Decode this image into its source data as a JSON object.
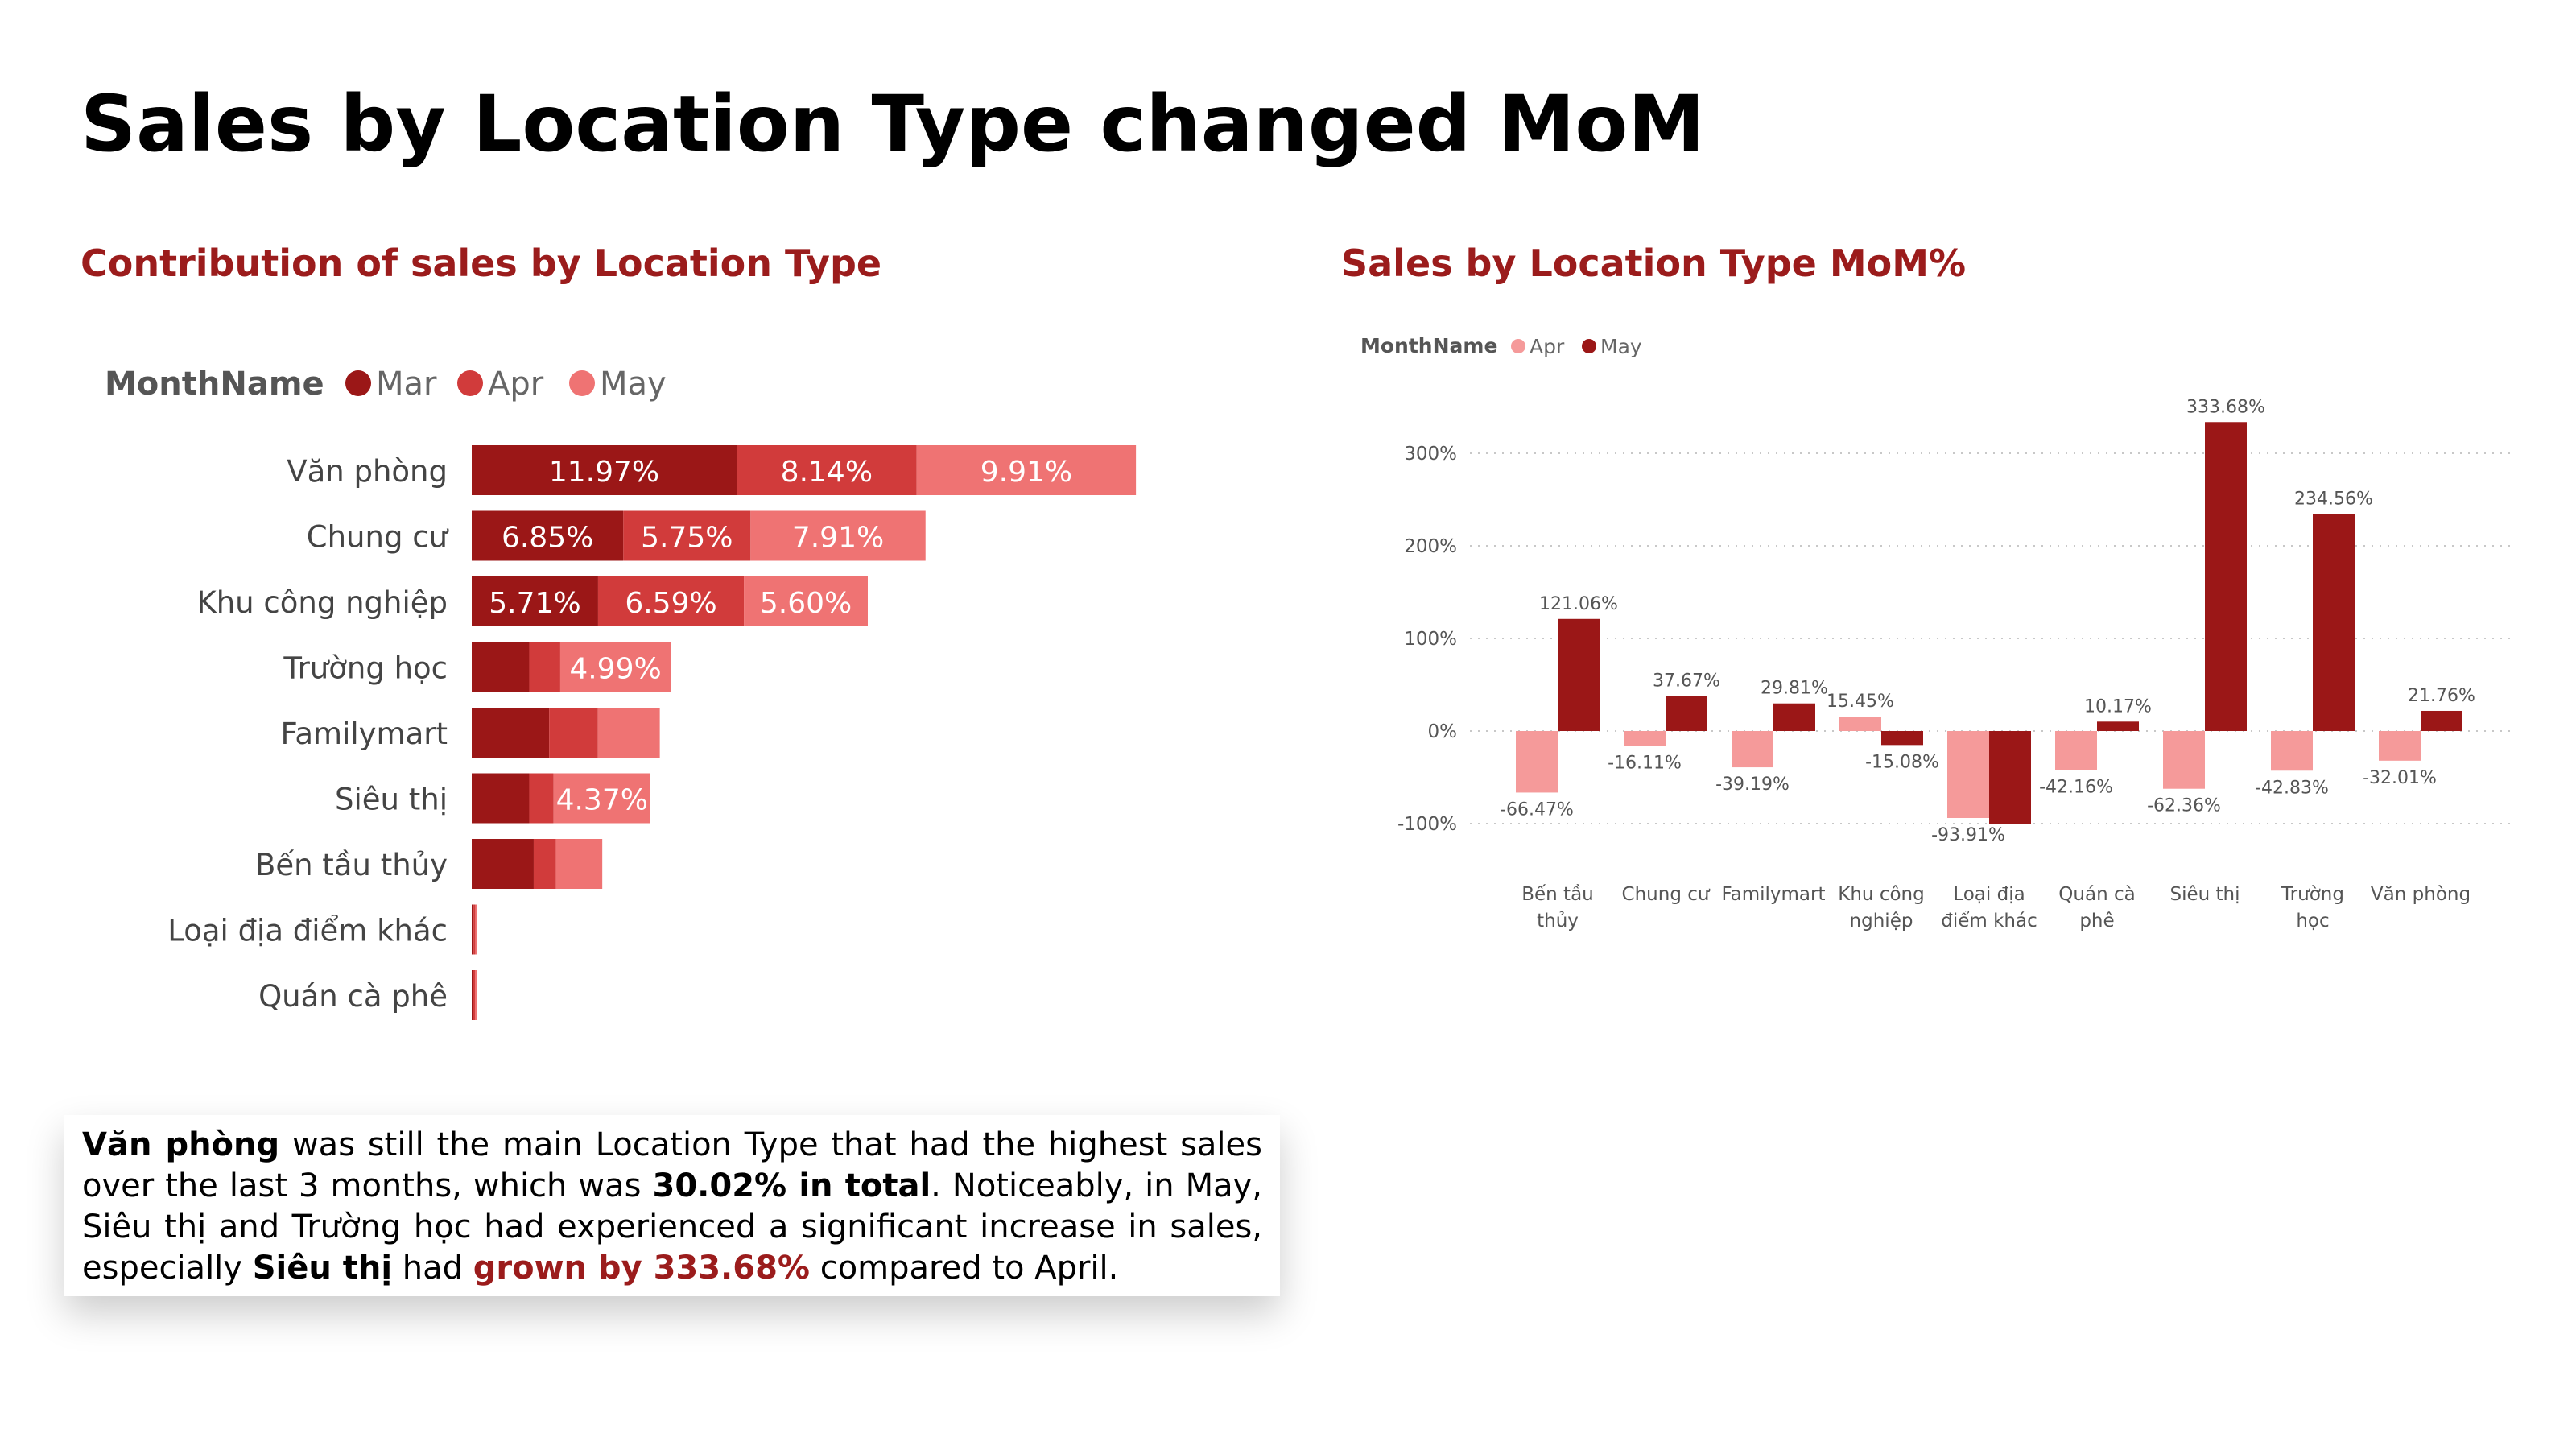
{
  "page_title": "Sales by Location Type changed MoM",
  "colors": {
    "mar": "#9b1717",
    "apr": "#d13b3b",
    "may": "#ef7373",
    "mom_apr": "#f59a9a",
    "mom_may": "#9b1717",
    "accent": "#9b1c1c"
  },
  "left_chart": {
    "title": "Contribution of sales by Location Type",
    "chart_data": {
      "type": "bar",
      "orientation": "horizontal-stacked",
      "legend_title": "MonthName",
      "legend_position": "top-left",
      "categories": [
        "Văn phòng",
        "Chung cư",
        "Khu công nghiệp",
        "Trường học",
        "Familymart",
        "Siêu thị",
        "Bến tầu thủy",
        "Loại địa điểm khác",
        "Quán cà phê"
      ],
      "series": [
        {
          "name": "Mar",
          "values": [
            11.97,
            6.85,
            5.71,
            2.6,
            3.5,
            2.6,
            2.8,
            0.08,
            0.03
          ],
          "labels": [
            "11.97%",
            "6.85%",
            "5.71%",
            "",
            "",
            "",
            "",
            "",
            ""
          ]
        },
        {
          "name": "Apr",
          "values": [
            8.14,
            5.75,
            6.59,
            1.4,
            2.2,
            1.1,
            1.0,
            0.08,
            0.03
          ],
          "labels": [
            "8.14%",
            "5.75%",
            "6.59%",
            "",
            "",
            "",
            "",
            "",
            ""
          ]
        },
        {
          "name": "May",
          "values": [
            9.91,
            7.91,
            5.6,
            4.99,
            2.8,
            4.37,
            2.1,
            0.04,
            0.02
          ],
          "labels": [
            "9.91%",
            "7.91%",
            "5.60%",
            "4.99%",
            "",
            "4.37%",
            "",
            "",
            ""
          ]
        }
      ],
      "xlim": [
        0,
        35
      ],
      "grid": false
    }
  },
  "right_chart": {
    "title": "Sales by Location Type MoM%",
    "chart_data": {
      "type": "bar",
      "orientation": "vertical-clustered",
      "legend_title": "MonthName",
      "legend_position": "top-left",
      "categories": [
        [
          "Bến tầu",
          "thủy"
        ],
        [
          "Chung cư"
        ],
        [
          "Familymart"
        ],
        [
          "Khu công",
          "nghiệp"
        ],
        [
          "Loại địa",
          "điểm khác"
        ],
        [
          "Quán cà",
          "phê"
        ],
        [
          "Siêu thị"
        ],
        [
          "Trường",
          "học"
        ],
        [
          "Văn phòng"
        ]
      ],
      "series": [
        {
          "name": "Apr",
          "values": [
            -66.47,
            -16.11,
            -39.19,
            15.45,
            -93.91,
            -42.16,
            -62.36,
            -42.83,
            -32.01
          ],
          "labels": [
            "-66.47%",
            "-16.11%",
            "-39.19%",
            "15.45%",
            "-93.91%",
            "-42.16%",
            "-62.36%",
            "-42.83%",
            "-32.01%"
          ]
        },
        {
          "name": "May",
          "values": [
            121.06,
            37.67,
            29.81,
            -15.08,
            -100,
            10.17,
            333.68,
            234.56,
            21.76
          ],
          "labels": [
            "121.06%",
            "37.67%",
            "29.81%",
            "-15.08%",
            "",
            "10.17%",
            "333.68%",
            "234.56%",
            "21.76%"
          ]
        }
      ],
      "y_ticks": [
        {
          "value": 300,
          "label": "300%"
        },
        {
          "value": 200,
          "label": "200%"
        },
        {
          "value": 100,
          "label": "100%"
        },
        {
          "value": 0,
          "label": "0%"
        },
        {
          "value": -100,
          "label": "-100%"
        }
      ],
      "ylim": [
        -110,
        345
      ],
      "grid": true
    }
  },
  "summary": {
    "p1_bold": "Văn phòng",
    "p2": " was still the main Location Type that had the highest sales over the last 3 months, which was ",
    "p3_bold": "30.02% in total",
    "p4": ". Noticeably, in May, Siêu thị and Trường học had experienced a significant increase in sales, especially ",
    "p5_bold": "Siêu thị",
    "p6": " had ",
    "p7_accent": "grown by 333.68%",
    "p8": " compared to April."
  }
}
